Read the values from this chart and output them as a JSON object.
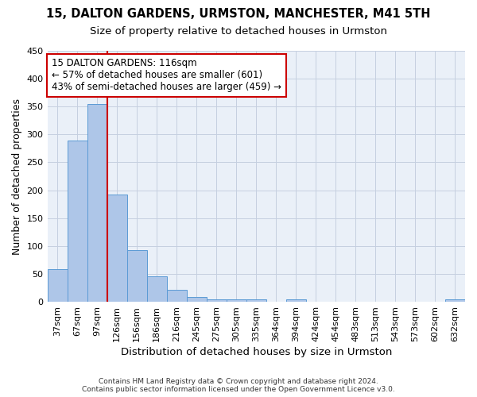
{
  "title": "15, DALTON GARDENS, URMSTON, MANCHESTER, M41 5TH",
  "subtitle": "Size of property relative to detached houses in Urmston",
  "xlabel": "Distribution of detached houses by size in Urmston",
  "ylabel": "Number of detached properties",
  "categories": [
    "37sqm",
    "67sqm",
    "97sqm",
    "126sqm",
    "156sqm",
    "186sqm",
    "216sqm",
    "245sqm",
    "275sqm",
    "305sqm",
    "335sqm",
    "364sqm",
    "394sqm",
    "424sqm",
    "454sqm",
    "483sqm",
    "513sqm",
    "543sqm",
    "573sqm",
    "602sqm",
    "632sqm"
  ],
  "values": [
    59,
    289,
    355,
    192,
    92,
    46,
    21,
    9,
    5,
    5,
    5,
    0,
    5,
    0,
    0,
    0,
    0,
    0,
    0,
    0,
    5
  ],
  "bar_color": "#aec6e8",
  "bar_edge_color": "#5b9bd5",
  "vline_color": "#cc0000",
  "annotation_line1": "15 DALTON GARDENS: 116sqm",
  "annotation_line2": "← 57% of detached houses are smaller (601)",
  "annotation_line3": "43% of semi-detached houses are larger (459) →",
  "annotation_box_color": "white",
  "annotation_box_edge": "#cc0000",
  "bg_color": "#eaf0f8",
  "grid_color": "#c5cfe0",
  "footer": "Contains HM Land Registry data © Crown copyright and database right 2024.\nContains public sector information licensed under the Open Government Licence v3.0.",
  "ylim": [
    0,
    450
  ],
  "title_fontsize": 10.5,
  "subtitle_fontsize": 9.5,
  "ylabel_fontsize": 9,
  "xlabel_fontsize": 9.5,
  "tick_fontsize": 8,
  "annot_fontsize": 8.5,
  "footer_fontsize": 6.5
}
